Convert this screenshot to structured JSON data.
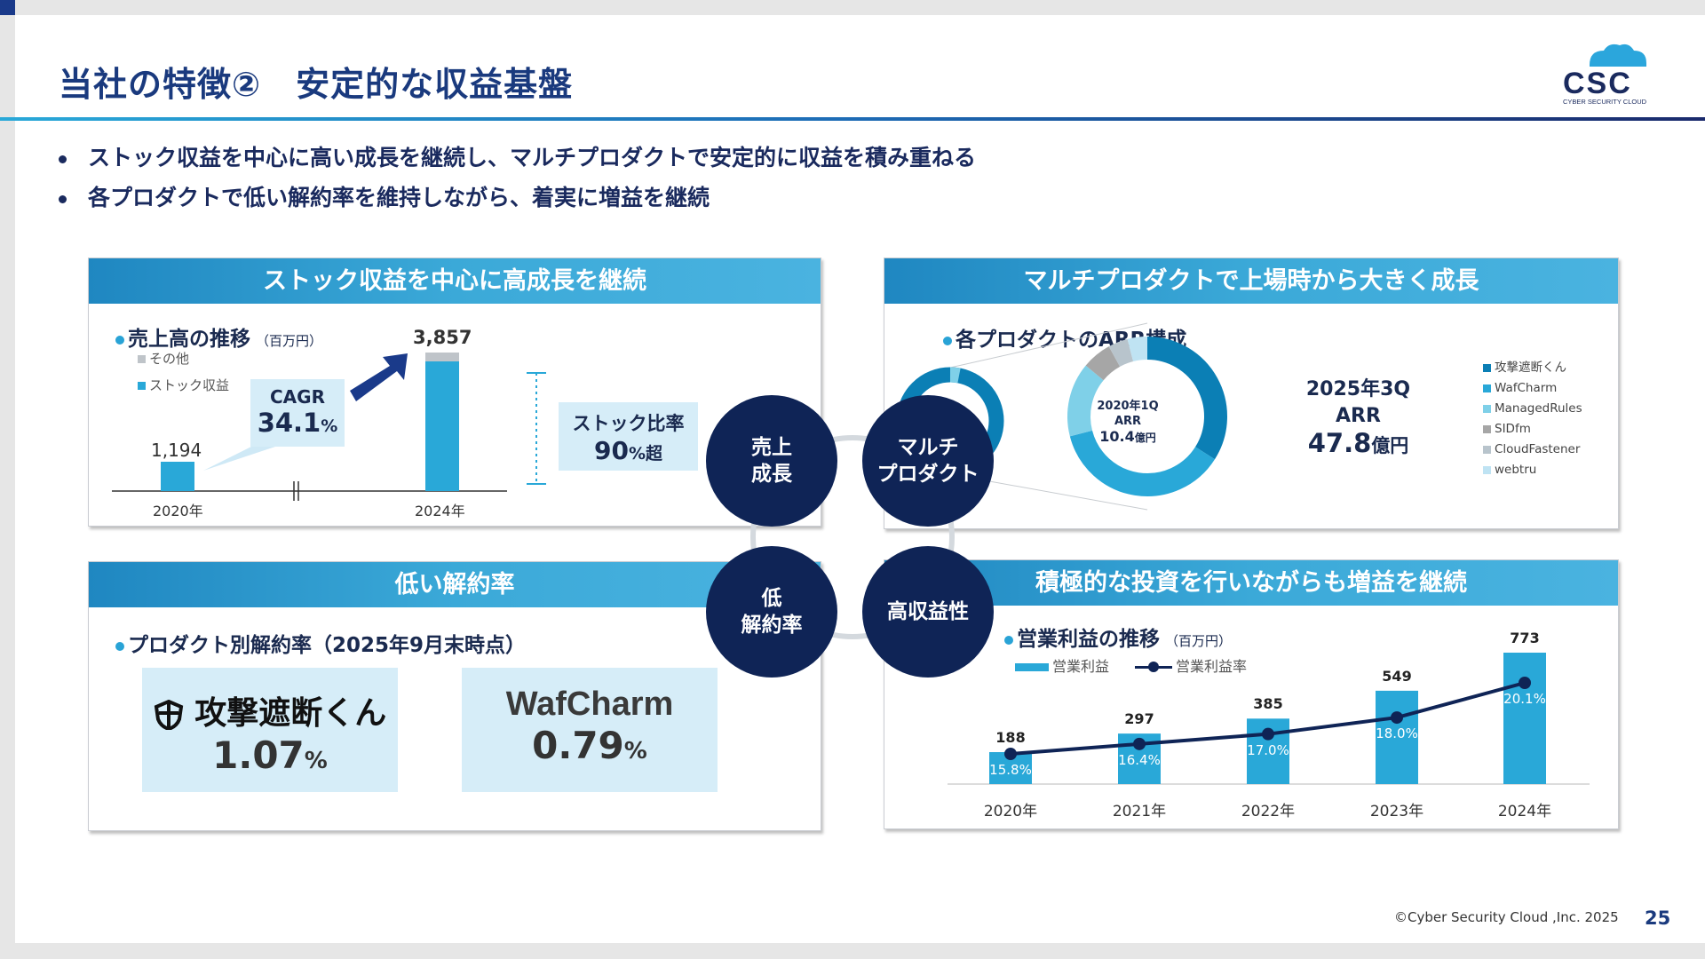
{
  "title": "当社の特徴②　安定的な収益基盤",
  "bullets": [
    "ストック収益を中心に高い成長を継続し、マルチプロダクトで安定的に収益を積み重ねる",
    "各プロダクトで低い解約率を維持しながら、着実に増益を継続"
  ],
  "logo_text": "CSC",
  "logo_sub": "CYBER SECURITY CLOUD",
  "panels": {
    "top_left": {
      "header": "ストック収益を中心に高成長を継続",
      "label": "売上高の推移",
      "unit": "（百万円）",
      "legend": [
        {
          "name": "その他",
          "color": "#bfc4c9"
        },
        {
          "name": "ストック収益",
          "color": "#29a8d8"
        }
      ],
      "cagr_label": "CAGR",
      "cagr_value": "34.1",
      "cagr_unit": "%",
      "bar_2020": "1,194",
      "bar_2024": "3,857",
      "x_2020": "2020年",
      "x_2024": "2024年",
      "ratio_label": "ストック比率",
      "ratio_value": "90",
      "ratio_unit": "%超"
    },
    "top_right": {
      "header": "マルチプロダクトで上場時から大きく成長",
      "label": "各プロダクトのARR構成",
      "small_line1": "2020年1Q",
      "small_line2": "ARR",
      "small_value": "10.4",
      "small_unit": "億円",
      "big_line1": "2025年3Q",
      "big_line2": "ARR",
      "big_value": "47.8",
      "big_unit": "億円",
      "legend": [
        {
          "name": "攻撃遮断くん",
          "color": "#0b7fb5"
        },
        {
          "name": "WafCharm",
          "color": "#29a8d8"
        },
        {
          "name": "ManagedRules",
          "color": "#7fd0e8"
        },
        {
          "name": "SIDfm",
          "color": "#a6a6a6"
        },
        {
          "name": "CloudFastener",
          "color": "#b8c4cc"
        },
        {
          "name": "webtru",
          "color": "#bfe3f3"
        }
      ]
    },
    "bottom_left": {
      "header": "低い解約率",
      "label": "プロダクト別解約率（2025年9月末時点）",
      "products": [
        {
          "logo": "攻撃遮断くん",
          "value": "1.07",
          "unit": "%"
        },
        {
          "logo": "WafCharm",
          "value": "0.79",
          "unit": "%"
        }
      ]
    },
    "bottom_right": {
      "header": "積極的な投資を行いながらも増益を継続",
      "label": "営業利益の推移",
      "unit": "（百万円）",
      "legend_bar": "営業利益",
      "legend_line": "営業利益率"
    }
  },
  "circles": [
    "売上\n成長",
    "マルチ\nプロダクト",
    "低\n解約率",
    "高収益性"
  ],
  "chart_data": [
    {
      "type": "bar",
      "categories": [
        "2020年",
        "2024年"
      ],
      "series": [
        {
          "name": "ストック収益",
          "values": [
            1194,
            3700
          ]
        },
        {
          "name": "その他",
          "values": [
            0,
            157
          ]
        }
      ],
      "totals": [
        1194,
        3857
      ]
    },
    {
      "type": "pie",
      "title": "2025年3Q ARR 47.8億円",
      "categories": [
        "攻撃遮断くん",
        "WafCharm",
        "ManagedRules",
        "SIDfm",
        "CloudFastener",
        "webtru"
      ],
      "values": [
        0.34,
        0.37,
        0.15,
        0.06,
        0.04,
        0.04
      ]
    },
    {
      "type": "bar",
      "categories": [
        "2020年",
        "2021年",
        "2022年",
        "2023年",
        "2024年"
      ],
      "series": [
        {
          "name": "営業利益",
          "values": [
            188,
            297,
            385,
            549,
            773
          ]
        },
        {
          "name": "営業利益率",
          "values": [
            15.8,
            16.4,
            17.0,
            18.0,
            20.1
          ],
          "labels": [
            "15.8%",
            "16.4%",
            "17.0%",
            "18.0%",
            "20.1%"
          ]
        }
      ]
    }
  ],
  "footer": {
    "copyright": "©Cyber Security Cloud ,Inc. 2025",
    "page": "25"
  }
}
